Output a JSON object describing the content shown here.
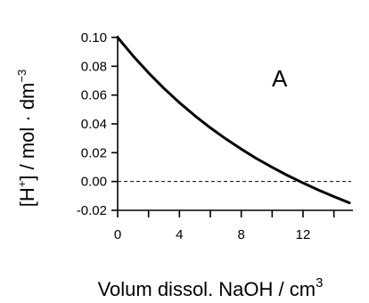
{
  "chart_data": {
    "type": "line",
    "xlabel": "Volum dissol. NaOH / cm",
    "xlabel_sup": "3",
    "ylabel_parts": [
      "[H",
      "+",
      "] / mol · dm",
      "−3"
    ],
    "annotation": "A",
    "xlim": [
      0,
      15
    ],
    "ylim": [
      -0.02,
      0.1
    ],
    "x_ticks": [
      0,
      2,
      4,
      6,
      8,
      10,
      12,
      14
    ],
    "x_tick_labels": [
      {
        "value": 0,
        "label": "0"
      },
      {
        "value": 4,
        "label": "4"
      },
      {
        "value": 8,
        "label": "8"
      },
      {
        "value": 12,
        "label": "12"
      }
    ],
    "y_ticks": [
      {
        "value": 0.1,
        "label": "0.10"
      },
      {
        "value": 0.08,
        "label": "0.08"
      },
      {
        "value": 0.06,
        "label": "0.06"
      },
      {
        "value": 0.04,
        "label": "0.04"
      },
      {
        "value": 0.02,
        "label": "0.02"
      },
      {
        "value": 0.0,
        "label": "0.00"
      },
      {
        "value": -0.02,
        "label": "-0.02"
      }
    ],
    "reference_line": {
      "y": 0.0,
      "style": "dashed"
    },
    "grid": false,
    "series": [
      {
        "x": [
          0,
          1,
          2,
          3,
          4,
          5,
          6,
          7,
          8,
          9,
          10,
          11,
          12,
          13,
          14,
          15
        ],
        "y": [
          0.1,
          0.0872,
          0.0754,
          0.0646,
          0.0547,
          0.0456,
          0.0373,
          0.0296,
          0.0225,
          0.0159,
          0.0099,
          0.0042,
          -0.001,
          -0.0059,
          -0.0105,
          -0.0148
        ]
      }
    ]
  }
}
